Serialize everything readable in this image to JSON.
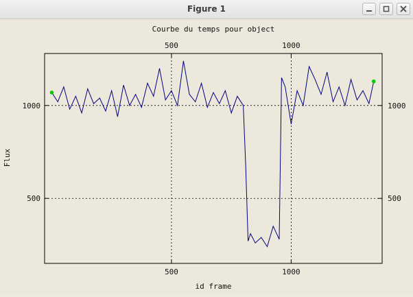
{
  "window": {
    "title": "Figure 1"
  },
  "chart_data": {
    "type": "line",
    "title": "Courbe du temps pour object",
    "xlabel": "id frame",
    "ylabel": "Flux",
    "xlim": [
      -30,
      1380
    ],
    "ylim": [
      150,
      1280
    ],
    "xticks": [
      500,
      1000
    ],
    "yticks": [
      500,
      1000
    ],
    "grid": true,
    "line_color": "#000080",
    "marker_color": "#00cc00",
    "series": [
      {
        "x": [
          0,
          25,
          50,
          75,
          100,
          125,
          150,
          175,
          200,
          225,
          250,
          275,
          300,
          325,
          350,
          375,
          400,
          425,
          450,
          475,
          500,
          525,
          550,
          575,
          600,
          625,
          650,
          675,
          700,
          725,
          750,
          775,
          800,
          810,
          820,
          830,
          850,
          875,
          900,
          925,
          950,
          960,
          975,
          1000,
          1025,
          1050,
          1075,
          1100,
          1125,
          1150,
          1175,
          1200,
          1225,
          1250,
          1275,
          1300,
          1325,
          1345
        ],
        "y": [
          1070,
          1020,
          1100,
          980,
          1050,
          960,
          1090,
          1010,
          1040,
          970,
          1080,
          940,
          1110,
          1000,
          1060,
          990,
          1120,
          1050,
          1200,
          1030,
          1080,
          1000,
          1240,
          1060,
          1020,
          1120,
          990,
          1070,
          1010,
          1080,
          960,
          1050,
          1000,
          680,
          270,
          310,
          260,
          290,
          240,
          350,
          280,
          1150,
          1100,
          900,
          1080,
          1000,
          1210,
          1140,
          1060,
          1180,
          1020,
          1100,
          1000,
          1140,
          1030,
          1080,
          1010,
          1130
        ]
      }
    ],
    "markers": [
      {
        "x": 0,
        "y": 1070
      },
      {
        "x": 1345,
        "y": 1130
      }
    ]
  }
}
